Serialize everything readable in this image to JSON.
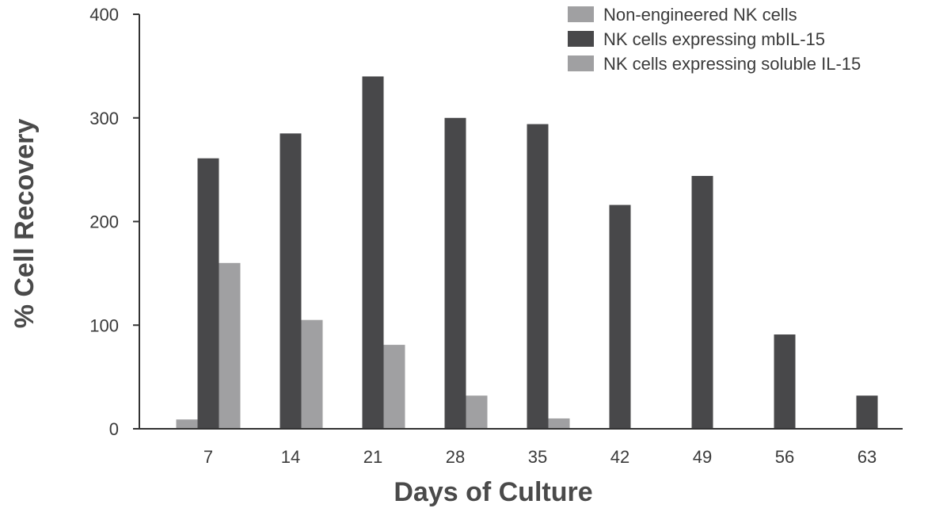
{
  "chart_data": {
    "type": "bar",
    "xlabel": "Days of Culture",
    "ylabel": "% Cell Recovery",
    "ylim": [
      0,
      400
    ],
    "yticks": [
      0,
      100,
      200,
      300,
      400
    ],
    "categories": [
      "7",
      "14",
      "21",
      "28",
      "35",
      "42",
      "49",
      "56",
      "63"
    ],
    "series": [
      {
        "name": "Non-engineered NK cells",
        "color": "#a0a0a2",
        "values": [
          9,
          null,
          null,
          null,
          null,
          null,
          null,
          null,
          null
        ]
      },
      {
        "name": "NK cells expressing mbIL-15",
        "color": "#48484a",
        "values": [
          261,
          285,
          340,
          300,
          294,
          216,
          244,
          91,
          32
        ]
      },
      {
        "name": "NK cells expressing soluble IL-15",
        "color": "#a0a0a2",
        "values": [
          160,
          105,
          81,
          32,
          10,
          null,
          null,
          null,
          null
        ]
      }
    ],
    "legend_position": "top-right",
    "grid": false
  }
}
